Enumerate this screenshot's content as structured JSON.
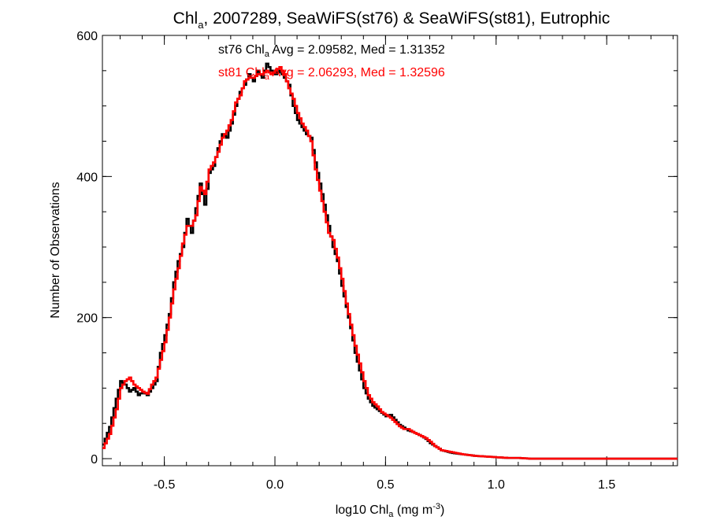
{
  "chart_data": {
    "type": "line",
    "title": {
      "main": "Chl",
      "sub": "a",
      "rest": ", 2007289, SeaWiFS(st76) & SeaWiFS(st81), Eutrophic"
    },
    "xlabel": {
      "main": "log10 Chl",
      "sub": "a",
      "rest": " (mg m",
      "sup": "-3",
      "end": ")"
    },
    "ylabel": "Number of Observations",
    "xlim": [
      -0.78,
      1.82
    ],
    "ylim": [
      -10,
      600
    ],
    "x_ticks": [
      -0.5,
      0.0,
      0.5,
      1.0,
      1.5
    ],
    "x_tick_labels": [
      "-0.5",
      "0.0",
      "0.5",
      "1.0",
      "1.5"
    ],
    "y_ticks": [
      0,
      200,
      400,
      600
    ],
    "y_tick_labels": [
      "0",
      "200",
      "400",
      "600"
    ],
    "grid": false,
    "bin_width": 0.01,
    "annotations": [
      {
        "series": "st76",
        "prefix": "st76 Chl",
        "sub": "a",
        "rest": " Avg = 2.09582, Med = 1.31352",
        "color": "#000000"
      },
      {
        "series": "st81",
        "prefix": "st81 Chl",
        "sub": "a",
        "rest": " Avg = 2.06293, Med = 1.32596",
        "color": "#ff0000"
      }
    ],
    "series": [
      {
        "name": "st76",
        "color": "#000000",
        "x": [
          -0.78,
          -0.75,
          -0.72,
          -0.7,
          -0.68,
          -0.66,
          -0.64,
          -0.62,
          -0.6,
          -0.58,
          -0.56,
          -0.54,
          -0.52,
          -0.5,
          -0.48,
          -0.46,
          -0.44,
          -0.42,
          -0.4,
          -0.38,
          -0.36,
          -0.34,
          -0.32,
          -0.3,
          -0.28,
          -0.26,
          -0.24,
          -0.22,
          -0.2,
          -0.18,
          -0.16,
          -0.14,
          -0.12,
          -0.1,
          -0.08,
          -0.06,
          -0.04,
          -0.02,
          0.0,
          0.02,
          0.04,
          0.06,
          0.08,
          0.1,
          0.12,
          0.14,
          0.16,
          0.18,
          0.2,
          0.22,
          0.24,
          0.26,
          0.28,
          0.3,
          0.32,
          0.34,
          0.36,
          0.38,
          0.4,
          0.42,
          0.44,
          0.46,
          0.48,
          0.5,
          0.52,
          0.54,
          0.56,
          0.58,
          0.6,
          0.62,
          0.64,
          0.66,
          0.68,
          0.7,
          0.72,
          0.75,
          0.8,
          0.85,
          0.9,
          0.95,
          1.0,
          1.05,
          1.1,
          1.15,
          1.2,
          1.25,
          1.3,
          1.35,
          1.4,
          1.45,
          1.5,
          1.55,
          1.6,
          1.65,
          1.7,
          1.75,
          1.8
        ],
        "y": [
          20,
          45,
          85,
          110,
          105,
          95,
          100,
          90,
          95,
          90,
          100,
          110,
          150,
          175,
          205,
          250,
          280,
          300,
          340,
          320,
          355,
          390,
          360,
          405,
          415,
          440,
          460,
          455,
          475,
          500,
          520,
          530,
          545,
          535,
          550,
          540,
          560,
          550,
          545,
          550,
          540,
          530,
          500,
          480,
          470,
          460,
          455,
          420,
          390,
          360,
          330,
          300,
          280,
          245,
          215,
          185,
          150,
          125,
          100,
          85,
          75,
          70,
          65,
          60,
          62,
          55,
          48,
          44,
          40,
          38,
          35,
          32,
          28,
          22,
          18,
          12,
          8,
          6,
          4,
          3,
          2,
          1,
          1,
          0,
          0,
          0,
          0,
          0,
          0,
          0,
          0,
          0,
          0,
          0,
          0,
          0,
          0
        ]
      },
      {
        "name": "st81",
        "color": "#ff0000",
        "x": [
          -0.78,
          -0.75,
          -0.72,
          -0.7,
          -0.68,
          -0.66,
          -0.64,
          -0.62,
          -0.6,
          -0.58,
          -0.56,
          -0.54,
          -0.52,
          -0.5,
          -0.48,
          -0.46,
          -0.44,
          -0.42,
          -0.4,
          -0.38,
          -0.36,
          -0.34,
          -0.32,
          -0.3,
          -0.28,
          -0.26,
          -0.24,
          -0.22,
          -0.2,
          -0.18,
          -0.16,
          -0.14,
          -0.12,
          -0.1,
          -0.08,
          -0.06,
          -0.04,
          -0.02,
          0.0,
          0.02,
          0.04,
          0.06,
          0.08,
          0.1,
          0.12,
          0.14,
          0.16,
          0.18,
          0.2,
          0.22,
          0.24,
          0.26,
          0.28,
          0.3,
          0.32,
          0.34,
          0.36,
          0.38,
          0.4,
          0.42,
          0.44,
          0.46,
          0.48,
          0.5,
          0.52,
          0.54,
          0.56,
          0.58,
          0.6,
          0.62,
          0.64,
          0.66,
          0.68,
          0.7,
          0.72,
          0.75,
          0.8,
          0.85,
          0.9,
          0.95,
          1.0,
          1.05,
          1.1,
          1.15,
          1.2,
          1.25,
          1.3,
          1.35,
          1.4,
          1.45,
          1.5,
          1.55,
          1.6,
          1.65,
          1.7,
          1.75,
          1.8
        ],
        "y": [
          15,
          35,
          70,
          100,
          110,
          115,
          105,
          100,
          95,
          92,
          105,
          115,
          140,
          165,
          200,
          240,
          270,
          305,
          330,
          330,
          345,
          385,
          375,
          410,
          420,
          435,
          455,
          465,
          480,
          505,
          515,
          535,
          540,
          540,
          545,
          545,
          550,
          545,
          550,
          555,
          545,
          525,
          510,
          490,
          475,
          465,
          450,
          410,
          380,
          350,
          320,
          310,
          285,
          255,
          220,
          190,
          160,
          135,
          110,
          90,
          80,
          74,
          66,
          62,
          58,
          52,
          46,
          42,
          42,
          38,
          35,
          32,
          29,
          24,
          18,
          12,
          9,
          6,
          4,
          3,
          2,
          1,
          1,
          0,
          0,
          0,
          0,
          0,
          0,
          0,
          0,
          0,
          0,
          0,
          0,
          0,
          0
        ]
      }
    ]
  }
}
